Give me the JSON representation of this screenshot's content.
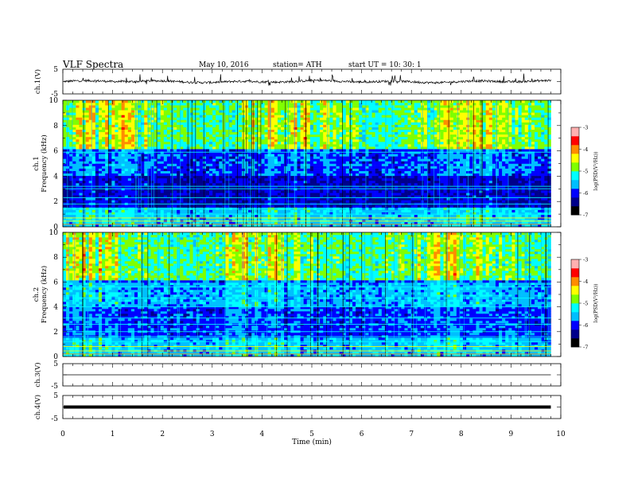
{
  "header": {
    "title": "VLF  Spectra",
    "date": "May 10, 2016",
    "station": "station= ATH",
    "start": "start  UT  =    10: 30: 1"
  },
  "colors": {
    "axis": "#000000",
    "colormap": [
      "#000000",
      "#00008b",
      "#0000ff",
      "#00bfff",
      "#00ffff",
      "#7fff00",
      "#ffff00",
      "#ff8c00",
      "#ff0000",
      "#ffb0b0"
    ]
  },
  "chart_data": [
    {
      "type": "line",
      "panel": "ch1",
      "ylabel": "ch.1(V)",
      "ylim": [
        -5,
        5
      ],
      "ytick_labels": [
        "5",
        "-5"
      ],
      "xlim": [
        0,
        10
      ],
      "description_values": {
        "baseline": 0,
        "xmax_data": 9.8
      }
    },
    {
      "type": "heatmap",
      "panel": "spec1",
      "ylabel": "ch.1\nFrequency (kHz)",
      "ylabel_line1": "ch.1",
      "ylabel_line2": "Frequency  (kHz)",
      "ylim": [
        0,
        10
      ],
      "ytick_labels": [
        "0",
        "2",
        "4",
        "6",
        "8",
        "10"
      ],
      "xlim": [
        0,
        10
      ],
      "colorbar": {
        "label": "log(PSD(V²/Hz))",
        "range": [
          -7,
          -3
        ],
        "tick_labels": [
          "-3",
          "-4",
          "-5",
          "-6",
          "-7"
        ]
      }
    },
    {
      "type": "heatmap",
      "panel": "spec2",
      "ylabel_line1": "ch.2",
      "ylabel_line2": "Frequency  (kHz)",
      "ylim": [
        0,
        10
      ],
      "ytick_labels": [
        "0",
        "2",
        "4",
        "6",
        "8",
        "10"
      ],
      "xlim": [
        0,
        10
      ],
      "colorbar": {
        "label": "log(PSD(V²/Hz))",
        "range": [
          -7,
          -3
        ],
        "tick_labels": [
          "-3",
          "-4",
          "-5",
          "-6",
          "-7"
        ]
      }
    },
    {
      "type": "line",
      "panel": "ch3",
      "ylabel": "ch.3(V)",
      "ylim": [
        -5,
        5
      ],
      "ytick_labels": [
        "5",
        "-5"
      ],
      "xlim": [
        0,
        10
      ]
    },
    {
      "type": "line",
      "panel": "ch4",
      "ylabel": "ch.4(V)",
      "ylim": [
        -5,
        5
      ],
      "ytick_labels": [
        "5",
        "-5"
      ],
      "xlim": [
        0,
        10
      ]
    }
  ],
  "xaxis": {
    "label": "Time  (min)",
    "tick_labels": [
      "0",
      "1",
      "2",
      "3",
      "4",
      "5",
      "6",
      "7",
      "8",
      "9",
      "10"
    ]
  }
}
